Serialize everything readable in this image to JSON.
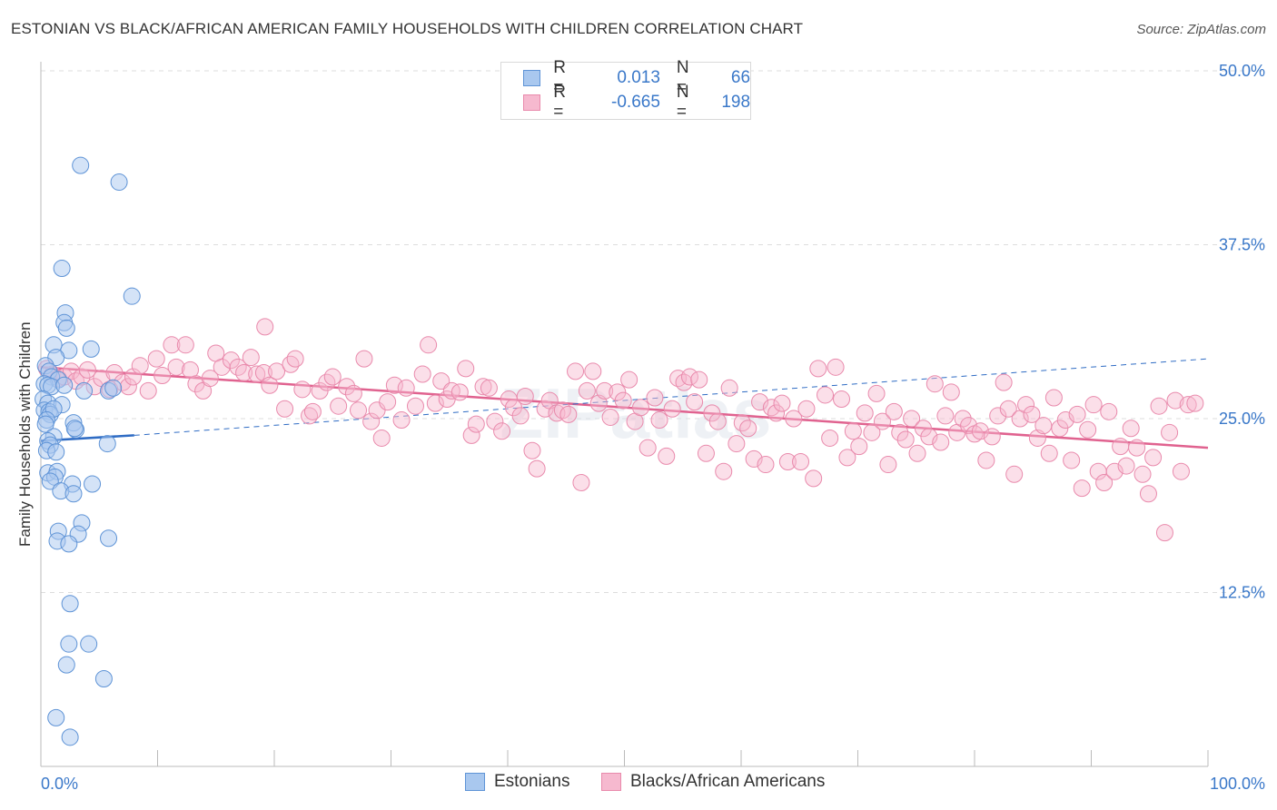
{
  "header": {
    "title": "ESTONIAN VS BLACK/AFRICAN AMERICAN FAMILY HOUSEHOLDS WITH CHILDREN CORRELATION CHART",
    "source": "Source: ZipAtlas.com"
  },
  "legend": {
    "rows": [
      {
        "r_label": "R =",
        "r_value": "0.013",
        "n_label": "N =",
        "n_value": "66"
      },
      {
        "r_label": "R =",
        "r_value": "-0.665",
        "n_label": "N =",
        "n_value": "198"
      }
    ]
  },
  "watermark": "ZIPatlas",
  "colors": {
    "estonians_fill": "#a9c8ef",
    "estonians_stroke": "#5e93d6",
    "estonians_line": "#2f6cc4",
    "black_fill": "#f6b9cf",
    "black_stroke": "#e98aac",
    "black_line": "#e0628f",
    "axis_text": "#3a78c9",
    "grid": "#dddddd"
  },
  "chart_data": {
    "type": "scatter",
    "title": "ESTONIAN VS BLACK/AFRICAN AMERICAN FAMILY HOUSEHOLDS WITH CHILDREN CORRELATION CHART",
    "xlabel": "",
    "ylabel": "Family Households with Children",
    "xlim": [
      0,
      100
    ],
    "ylim": [
      0,
      50
    ],
    "x_ticks": [
      "0.0%",
      "100.0%"
    ],
    "y_ticks": [
      {
        "value": 12.5,
        "label": "12.5%"
      },
      {
        "value": 25.0,
        "label": "25.0%"
      },
      {
        "value": 37.5,
        "label": "37.5%"
      },
      {
        "value": 50.0,
        "label": "50.0%"
      }
    ],
    "legend_position": "top-center",
    "grid": true,
    "series": [
      {
        "name": "Estonians",
        "r": 0.013,
        "n": 66,
        "trend": {
          "x": [
            0,
            8
          ],
          "y": [
            23.4,
            23.8
          ],
          "dashed_extension_to_x": 100,
          "dashed_end_y": 29.3
        },
        "points": [
          [
            3.4,
            43.2
          ],
          [
            6.7,
            42.0
          ],
          [
            1.8,
            35.8
          ],
          [
            7.8,
            33.8
          ],
          [
            2.1,
            32.6
          ],
          [
            2.0,
            31.9
          ],
          [
            2.2,
            31.5
          ],
          [
            4.3,
            30.0
          ],
          [
            1.1,
            30.3
          ],
          [
            2.4,
            29.9
          ],
          [
            1.3,
            29.4
          ],
          [
            0.4,
            28.8
          ],
          [
            0.7,
            28.4
          ],
          [
            0.9,
            28.0
          ],
          [
            1.5,
            27.8
          ],
          [
            0.3,
            27.5
          ],
          [
            0.6,
            27.4
          ],
          [
            0.9,
            27.3
          ],
          [
            2.0,
            27.4
          ],
          [
            3.7,
            27.0
          ],
          [
            5.8,
            27.0
          ],
          [
            6.2,
            27.2
          ],
          [
            0.2,
            26.4
          ],
          [
            0.6,
            26.1
          ],
          [
            1.8,
            26.0
          ],
          [
            0.3,
            25.6
          ],
          [
            0.7,
            25.5
          ],
          [
            0.8,
            25.3
          ],
          [
            1.1,
            25.7
          ],
          [
            0.5,
            24.9
          ],
          [
            0.4,
            24.6
          ],
          [
            2.8,
            24.7
          ],
          [
            3.0,
            24.2
          ],
          [
            2.9,
            24.3
          ],
          [
            1.1,
            23.7
          ],
          [
            0.6,
            23.4
          ],
          [
            0.8,
            23.1
          ],
          [
            5.7,
            23.2
          ],
          [
            0.5,
            22.7
          ],
          [
            1.3,
            22.6
          ],
          [
            0.6,
            21.1
          ],
          [
            1.4,
            21.2
          ],
          [
            1.2,
            20.8
          ],
          [
            0.8,
            20.5
          ],
          [
            2.7,
            20.3
          ],
          [
            4.4,
            20.3
          ],
          [
            1.7,
            19.8
          ],
          [
            2.8,
            19.6
          ],
          [
            3.5,
            17.5
          ],
          [
            1.5,
            16.9
          ],
          [
            3.2,
            16.7
          ],
          [
            1.4,
            16.2
          ],
          [
            2.4,
            16.0
          ],
          [
            5.8,
            16.4
          ],
          [
            2.5,
            11.7
          ],
          [
            2.4,
            8.8
          ],
          [
            4.1,
            8.8
          ],
          [
            2.2,
            7.3
          ],
          [
            5.4,
            6.3
          ],
          [
            1.3,
            3.5
          ],
          [
            2.5,
            2.1
          ]
        ]
      },
      {
        "name": "Blacks/African Americans",
        "r": -0.665,
        "n": 198,
        "trend": {
          "x": [
            0,
            100
          ],
          "y": [
            28.7,
            22.9
          ]
        },
        "points": [
          [
            0.5,
            28.6
          ],
          [
            1.0,
            28.2
          ],
          [
            1.5,
            27.9
          ],
          [
            2.0,
            28.0
          ],
          [
            2.6,
            28.4
          ],
          [
            3.0,
            27.7
          ],
          [
            3.5,
            28.0
          ],
          [
            4.0,
            28.5
          ],
          [
            4.6,
            27.3
          ],
          [
            5.2,
            27.9
          ],
          [
            5.9,
            27.1
          ],
          [
            6.3,
            28.3
          ],
          [
            7.0,
            27.6
          ],
          [
            7.5,
            27.3
          ],
          [
            7.9,
            28.0
          ],
          [
            8.5,
            28.8
          ],
          [
            9.2,
            27.0
          ],
          [
            9.9,
            29.3
          ],
          [
            10.4,
            28.1
          ],
          [
            11.2,
            30.3
          ],
          [
            11.6,
            28.7
          ],
          [
            12.4,
            30.3
          ],
          [
            12.8,
            28.5
          ],
          [
            13.3,
            27.5
          ],
          [
            13.9,
            27.0
          ],
          [
            14.5,
            27.9
          ],
          [
            15.0,
            29.7
          ],
          [
            15.5,
            28.7
          ],
          [
            16.3,
            29.2
          ],
          [
            16.9,
            28.7
          ],
          [
            17.4,
            28.3
          ],
          [
            18.0,
            29.4
          ],
          [
            18.5,
            28.2
          ],
          [
            19.1,
            28.3
          ],
          [
            19.2,
            31.6
          ],
          [
            19.6,
            27.4
          ],
          [
            20.2,
            28.4
          ],
          [
            20.9,
            25.7
          ],
          [
            21.4,
            28.9
          ],
          [
            21.8,
            29.3
          ],
          [
            22.4,
            27.1
          ],
          [
            23.0,
            25.2
          ],
          [
            23.3,
            25.5
          ],
          [
            23.9,
            27.0
          ],
          [
            24.5,
            27.6
          ],
          [
            25.0,
            28.0
          ],
          [
            25.5,
            25.9
          ],
          [
            26.2,
            27.3
          ],
          [
            26.8,
            26.8
          ],
          [
            27.2,
            25.6
          ],
          [
            27.7,
            29.3
          ],
          [
            28.3,
            24.8
          ],
          [
            28.8,
            25.6
          ],
          [
            29.2,
            23.6
          ],
          [
            29.7,
            26.2
          ],
          [
            30.3,
            27.4
          ],
          [
            30.9,
            24.9
          ],
          [
            31.3,
            27.2
          ],
          [
            32.1,
            25.9
          ],
          [
            32.7,
            28.2
          ],
          [
            33.2,
            30.3
          ],
          [
            33.8,
            26.1
          ],
          [
            34.3,
            27.7
          ],
          [
            34.8,
            26.4
          ],
          [
            35.2,
            27.0
          ],
          [
            35.9,
            26.9
          ],
          [
            36.4,
            28.6
          ],
          [
            36.9,
            23.8
          ],
          [
            37.3,
            24.6
          ],
          [
            37.9,
            27.3
          ],
          [
            38.4,
            27.2
          ],
          [
            38.9,
            24.8
          ],
          [
            39.5,
            24.1
          ],
          [
            40.1,
            26.4
          ],
          [
            40.5,
            25.8
          ],
          [
            41.1,
            25.2
          ],
          [
            41.5,
            26.6
          ],
          [
            42.1,
            22.7
          ],
          [
            42.5,
            21.4
          ],
          [
            43.2,
            25.7
          ],
          [
            43.6,
            26.3
          ],
          [
            44.2,
            25.4
          ],
          [
            44.7,
            25.6
          ],
          [
            45.2,
            25.3
          ],
          [
            45.8,
            28.4
          ],
          [
            46.3,
            20.4
          ],
          [
            46.8,
            27.0
          ],
          [
            47.3,
            28.4
          ],
          [
            47.8,
            26.1
          ],
          [
            48.3,
            27.0
          ],
          [
            48.8,
            25.1
          ],
          [
            49.4,
            26.9
          ],
          [
            49.9,
            26.3
          ],
          [
            50.4,
            27.8
          ],
          [
            50.9,
            24.8
          ],
          [
            51.4,
            25.8
          ],
          [
            52.0,
            22.9
          ],
          [
            52.6,
            26.5
          ],
          [
            53.0,
            24.9
          ],
          [
            53.6,
            22.3
          ],
          [
            54.1,
            25.7
          ],
          [
            54.6,
            27.9
          ],
          [
            55.1,
            27.6
          ],
          [
            55.6,
            28.0
          ],
          [
            56.0,
            26.2
          ],
          [
            56.4,
            27.8
          ],
          [
            57.0,
            22.5
          ],
          [
            57.5,
            25.4
          ],
          [
            58.0,
            24.8
          ],
          [
            58.5,
            21.2
          ],
          [
            59.0,
            27.2
          ],
          [
            59.6,
            23.2
          ],
          [
            60.1,
            24.7
          ],
          [
            60.6,
            24.3
          ],
          [
            61.1,
            22.1
          ],
          [
            61.6,
            26.2
          ],
          [
            62.1,
            21.7
          ],
          [
            62.6,
            25.8
          ],
          [
            63.0,
            25.4
          ],
          [
            63.5,
            26.1
          ],
          [
            64.0,
            21.9
          ],
          [
            64.5,
            25.0
          ],
          [
            65.1,
            21.9
          ],
          [
            65.6,
            25.7
          ],
          [
            66.2,
            20.7
          ],
          [
            66.6,
            28.6
          ],
          [
            67.2,
            26.7
          ],
          [
            67.6,
            23.6
          ],
          [
            68.1,
            28.7
          ],
          [
            68.6,
            26.4
          ],
          [
            69.1,
            22.2
          ],
          [
            69.6,
            24.1
          ],
          [
            70.1,
            23.0
          ],
          [
            70.6,
            25.4
          ],
          [
            71.2,
            24.0
          ],
          [
            71.6,
            26.8
          ],
          [
            72.1,
            24.8
          ],
          [
            72.6,
            21.7
          ],
          [
            73.1,
            25.5
          ],
          [
            73.6,
            24.0
          ],
          [
            74.1,
            23.5
          ],
          [
            74.6,
            25.0
          ],
          [
            75.1,
            22.5
          ],
          [
            75.6,
            24.3
          ],
          [
            76.1,
            23.7
          ],
          [
            76.6,
            27.5
          ],
          [
            77.1,
            23.3
          ],
          [
            77.5,
            25.2
          ],
          [
            78.0,
            26.9
          ],
          [
            78.5,
            24.0
          ],
          [
            79.0,
            25.0
          ],
          [
            79.5,
            24.5
          ],
          [
            80.0,
            23.9
          ],
          [
            80.5,
            24.1
          ],
          [
            81.0,
            22.0
          ],
          [
            81.5,
            23.7
          ],
          [
            82.0,
            25.2
          ],
          [
            82.5,
            27.6
          ],
          [
            82.9,
            25.7
          ],
          [
            83.4,
            21.0
          ],
          [
            83.9,
            25.0
          ],
          [
            84.4,
            26.0
          ],
          [
            84.9,
            25.3
          ],
          [
            85.4,
            23.6
          ],
          [
            85.9,
            24.5
          ],
          [
            86.4,
            22.5
          ],
          [
            86.8,
            26.5
          ],
          [
            87.3,
            24.3
          ],
          [
            87.8,
            24.9
          ],
          [
            88.3,
            22.0
          ],
          [
            88.8,
            25.3
          ],
          [
            89.2,
            20.0
          ],
          [
            89.7,
            24.2
          ],
          [
            90.2,
            26.0
          ],
          [
            90.6,
            21.2
          ],
          [
            91.1,
            20.4
          ],
          [
            91.5,
            25.5
          ],
          [
            92.0,
            21.2
          ],
          [
            92.5,
            23.0
          ],
          [
            93.0,
            21.6
          ],
          [
            93.4,
            24.3
          ],
          [
            93.9,
            22.9
          ],
          [
            94.4,
            21.0
          ],
          [
            94.9,
            19.6
          ],
          [
            95.3,
            22.2
          ],
          [
            95.8,
            25.9
          ],
          [
            96.3,
            16.8
          ],
          [
            96.7,
            24.0
          ],
          [
            97.2,
            26.3
          ],
          [
            97.7,
            21.2
          ],
          [
            98.3,
            26.0
          ],
          [
            98.9,
            26.1
          ]
        ]
      }
    ]
  }
}
